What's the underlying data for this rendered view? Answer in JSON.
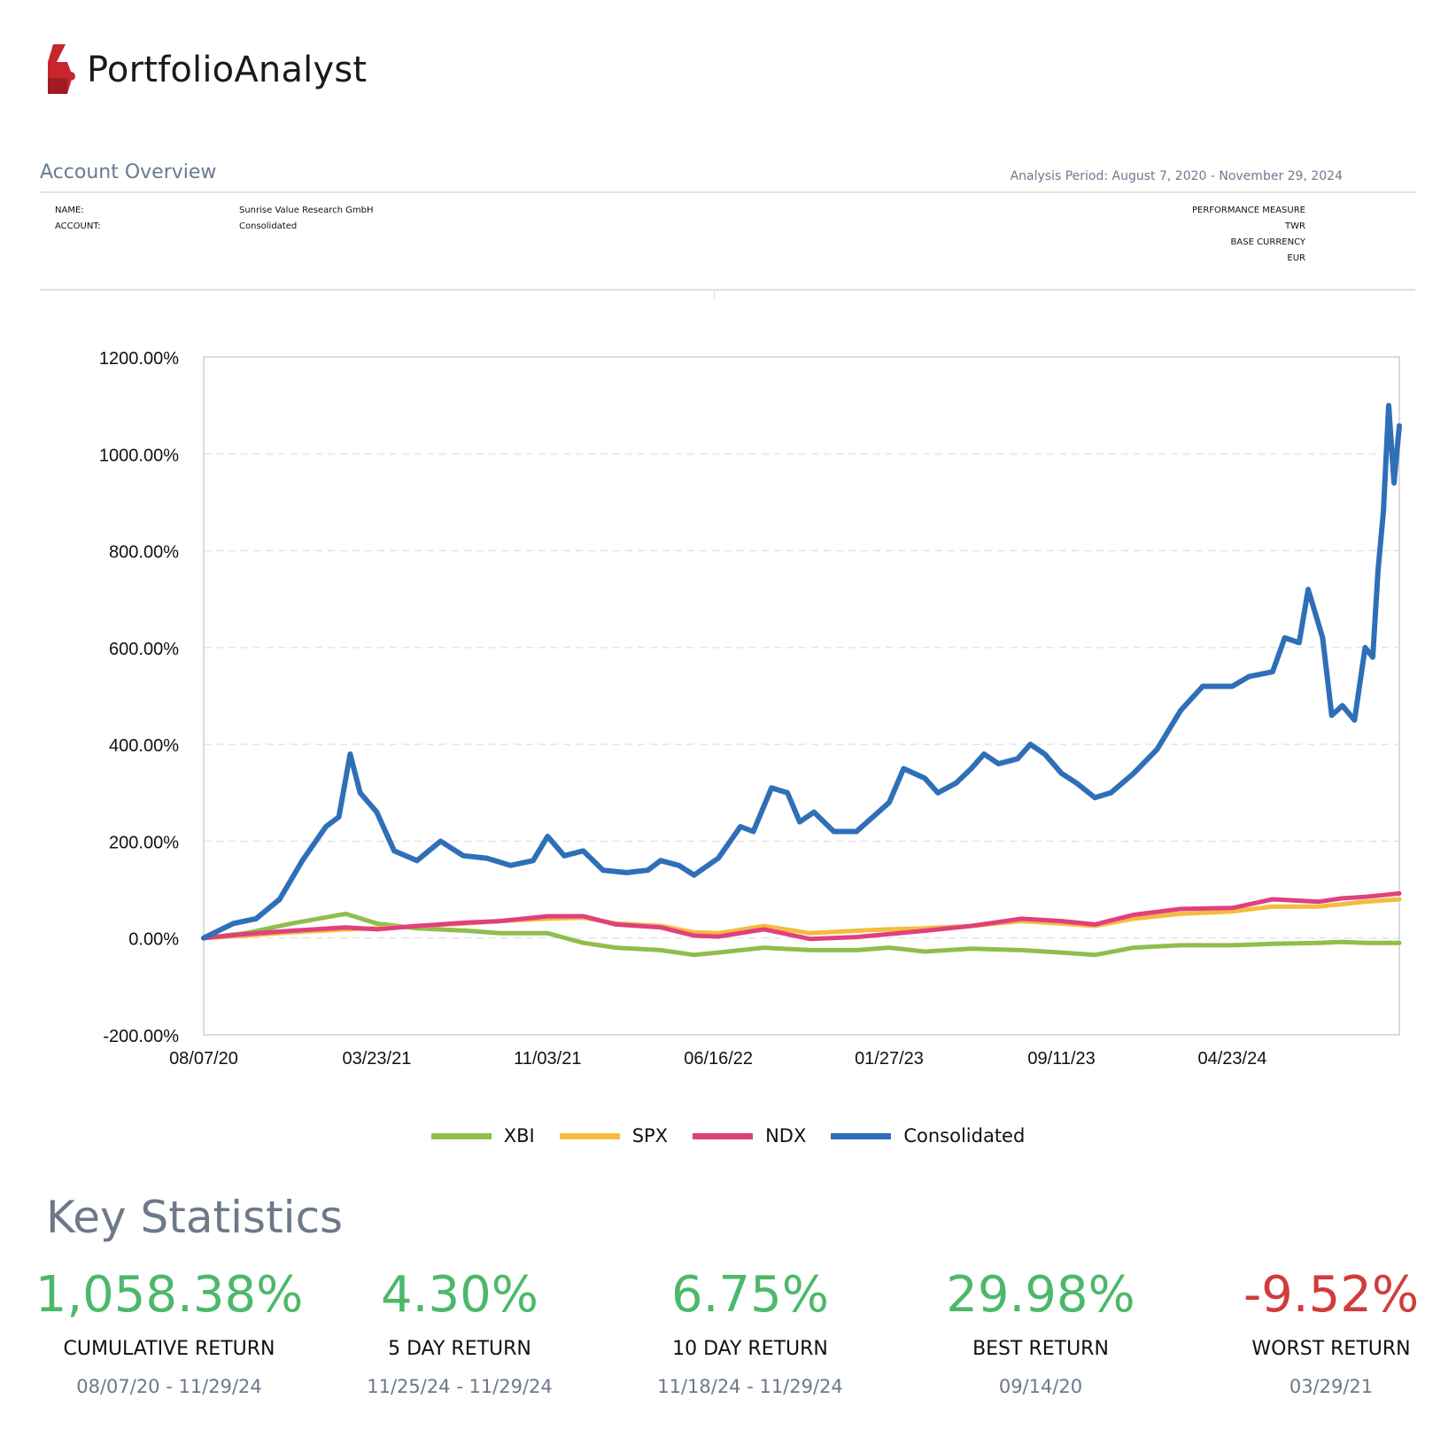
{
  "brand": {
    "name": "PortfolioAnalyst"
  },
  "overview": {
    "title": "Account Overview",
    "analysis_period": "Analysis Period: August 7, 2020 - November 29, 2024",
    "name_label": "NAME:",
    "name_value": "Sunrise Value Research GmbH",
    "account_label": "ACCOUNT:",
    "account_value": "Consolidated",
    "perf_label": "PERFORMANCE MEASURE",
    "perf_value": "TWR",
    "currency_label": "BASE CURRENCY",
    "currency_value": "EUR"
  },
  "colors": {
    "XBI": "#8fbe4a",
    "SPX": "#f5bb3c",
    "NDX": "#e0407f",
    "Consolidated": "#2f6fb8",
    "positive": "#4cb86a",
    "negative": "#d23b3b"
  },
  "chart_data": {
    "type": "line",
    "ylim": [
      -200,
      1200
    ],
    "yticks": [
      "1200.00%",
      "1000.00%",
      "800.00%",
      "600.00%",
      "400.00%",
      "200.00%",
      "0.00%",
      "-200.00%"
    ],
    "ytick_values": [
      1200,
      1000,
      800,
      600,
      400,
      200,
      0,
      -200
    ],
    "xticks": [
      "08/07/20",
      "03/23/21",
      "11/03/21",
      "06/16/22",
      "01/27/23",
      "09/11/23",
      "04/23/24"
    ],
    "grid": true,
    "legend_position": "bottom",
    "series": [
      {
        "name": "XBI",
        "values": [
          [
            "08/07/20",
            0
          ],
          [
            "10/01/20",
            10
          ],
          [
            "12/01/20",
            30
          ],
          [
            "02/10/21",
            50
          ],
          [
            "03/23/21",
            30
          ],
          [
            "05/15/21",
            20
          ],
          [
            "07/20/21",
            15
          ],
          [
            "09/01/21",
            10
          ],
          [
            "11/03/21",
            10
          ],
          [
            "12/20/21",
            -10
          ],
          [
            "02/01/22",
            -20
          ],
          [
            "04/01/22",
            -25
          ],
          [
            "05/15/22",
            -35
          ],
          [
            "06/16/22",
            -30
          ],
          [
            "08/15/22",
            -20
          ],
          [
            "10/15/22",
            -25
          ],
          [
            "12/15/22",
            -25
          ],
          [
            "01/27/23",
            -20
          ],
          [
            "03/15/23",
            -28
          ],
          [
            "05/15/23",
            -22
          ],
          [
            "07/20/23",
            -25
          ],
          [
            "09/11/23",
            -30
          ],
          [
            "10/25/23",
            -35
          ],
          [
            "12/15/23",
            -20
          ],
          [
            "02/15/24",
            -15
          ],
          [
            "04/23/24",
            -15
          ],
          [
            "06/15/24",
            -12
          ],
          [
            "08/15/24",
            -10
          ],
          [
            "09/15/24",
            -8
          ],
          [
            "10/15/24",
            -10
          ],
          [
            "11/29/24",
            -10
          ]
        ]
      },
      {
        "name": "SPX",
        "values": [
          [
            "08/07/20",
            0
          ],
          [
            "10/01/20",
            5
          ],
          [
            "12/01/20",
            12
          ],
          [
            "02/10/21",
            18
          ],
          [
            "03/23/21",
            20
          ],
          [
            "05/15/21",
            25
          ],
          [
            "07/20/21",
            30
          ],
          [
            "09/01/21",
            35
          ],
          [
            "11/03/21",
            40
          ],
          [
            "12/20/21",
            42
          ],
          [
            "02/01/22",
            30
          ],
          [
            "04/01/22",
            25
          ],
          [
            "05/15/22",
            12
          ],
          [
            "06/16/22",
            10
          ],
          [
            "08/15/22",
            25
          ],
          [
            "10/15/22",
            10
          ],
          [
            "12/15/22",
            15
          ],
          [
            "01/27/23",
            18
          ],
          [
            "03/15/23",
            20
          ],
          [
            "05/15/23",
            25
          ],
          [
            "07/20/23",
            35
          ],
          [
            "09/11/23",
            30
          ],
          [
            "10/25/23",
            25
          ],
          [
            "12/15/23",
            40
          ],
          [
            "02/15/24",
            50
          ],
          [
            "04/23/24",
            55
          ],
          [
            "06/15/24",
            65
          ],
          [
            "08/15/24",
            65
          ],
          [
            "09/15/24",
            70
          ],
          [
            "10/15/24",
            75
          ],
          [
            "11/29/24",
            80
          ]
        ]
      },
      {
        "name": "NDX",
        "values": [
          [
            "08/07/20",
            0
          ],
          [
            "10/01/20",
            8
          ],
          [
            "12/01/20",
            15
          ],
          [
            "02/10/21",
            22
          ],
          [
            "03/23/21",
            18
          ],
          [
            "05/15/21",
            25
          ],
          [
            "07/20/21",
            32
          ],
          [
            "09/01/21",
            35
          ],
          [
            "11/03/21",
            45
          ],
          [
            "12/20/21",
            45
          ],
          [
            "02/01/22",
            28
          ],
          [
            "04/01/22",
            22
          ],
          [
            "05/15/22",
            5
          ],
          [
            "06/16/22",
            3
          ],
          [
            "08/15/22",
            18
          ],
          [
            "10/15/22",
            -2
          ],
          [
            "12/15/22",
            2
          ],
          [
            "01/27/23",
            8
          ],
          [
            "03/15/23",
            15
          ],
          [
            "05/15/23",
            25
          ],
          [
            "07/20/23",
            40
          ],
          [
            "09/11/23",
            35
          ],
          [
            "10/25/23",
            28
          ],
          [
            "12/15/23",
            48
          ],
          [
            "02/15/24",
            60
          ],
          [
            "04/23/24",
            62
          ],
          [
            "06/15/24",
            80
          ],
          [
            "08/15/24",
            75
          ],
          [
            "09/15/24",
            82
          ],
          [
            "10/15/24",
            85
          ],
          [
            "11/29/24",
            92
          ]
        ]
      },
      {
        "name": "Consolidated",
        "values": [
          [
            "08/07/20",
            0
          ],
          [
            "09/15/20",
            30
          ],
          [
            "10/15/20",
            40
          ],
          [
            "11/15/20",
            80
          ],
          [
            "12/15/20",
            160
          ],
          [
            "01/15/21",
            230
          ],
          [
            "02/01/21",
            250
          ],
          [
            "02/16/21",
            380
          ],
          [
            "03/01/21",
            300
          ],
          [
            "03/23/21",
            260
          ],
          [
            "04/15/21",
            180
          ],
          [
            "05/15/21",
            160
          ],
          [
            "06/15/21",
            200
          ],
          [
            "07/15/21",
            170
          ],
          [
            "08/15/21",
            165
          ],
          [
            "09/15/21",
            150
          ],
          [
            "10/15/21",
            160
          ],
          [
            "11/03/21",
            210
          ],
          [
            "11/25/21",
            170
          ],
          [
            "12/20/21",
            180
          ],
          [
            "01/15/22",
            140
          ],
          [
            "02/15/22",
            135
          ],
          [
            "03/15/22",
            140
          ],
          [
            "04/01/22",
            160
          ],
          [
            "04/25/22",
            150
          ],
          [
            "05/15/22",
            130
          ],
          [
            "06/16/22",
            165
          ],
          [
            "07/15/22",
            230
          ],
          [
            "08/01/22",
            220
          ],
          [
            "08/25/22",
            310
          ],
          [
            "09/15/22",
            300
          ],
          [
            "10/01/22",
            240
          ],
          [
            "10/20/22",
            260
          ],
          [
            "11/15/22",
            220
          ],
          [
            "12/15/22",
            220
          ],
          [
            "01/27/23",
            280
          ],
          [
            "02/15/23",
            350
          ],
          [
            "03/15/23",
            330
          ],
          [
            "04/01/23",
            300
          ],
          [
            "04/25/23",
            320
          ],
          [
            "05/15/23",
            350
          ],
          [
            "06/01/23",
            380
          ],
          [
            "06/20/23",
            360
          ],
          [
            "07/15/23",
            370
          ],
          [
            "08/01/23",
            400
          ],
          [
            "08/20/23",
            380
          ],
          [
            "09/11/23",
            340
          ],
          [
            "10/01/23",
            320
          ],
          [
            "10/25/23",
            290
          ],
          [
            "11/15/23",
            300
          ],
          [
            "12/15/23",
            340
          ],
          [
            "01/15/24",
            390
          ],
          [
            "02/15/24",
            470
          ],
          [
            "03/15/24",
            520
          ],
          [
            "04/23/24",
            520
          ],
          [
            "05/15/24",
            540
          ],
          [
            "06/15/24",
            550
          ],
          [
            "07/01/24",
            620
          ],
          [
            "07/20/24",
            610
          ],
          [
            "08/01/24",
            720
          ],
          [
            "08/20/24",
            620
          ],
          [
            "09/01/24",
            460
          ],
          [
            "09/15/24",
            480
          ],
          [
            "10/01/24",
            450
          ],
          [
            "10/15/24",
            600
          ],
          [
            "10/25/24",
            580
          ],
          [
            "11/01/24",
            760
          ],
          [
            "11/08/24",
            880
          ],
          [
            "11/15/24",
            1100
          ],
          [
            "11/22/24",
            940
          ],
          [
            "11/29/24",
            1058
          ]
        ]
      }
    ]
  },
  "legend": [
    "XBI",
    "SPX",
    "NDX",
    "Consolidated"
  ],
  "stats": {
    "title": "Key Statistics",
    "items": [
      {
        "value": "1,058.38%",
        "label": "CUMULATIVE RETURN",
        "range": "08/07/20 - 11/29/24",
        "sign": "positive"
      },
      {
        "value": "4.30%",
        "label": "5 DAY RETURN",
        "range": "11/25/24 - 11/29/24",
        "sign": "positive"
      },
      {
        "value": "6.75%",
        "label": "10 DAY RETURN",
        "range": "11/18/24 - 11/29/24",
        "sign": "positive"
      },
      {
        "value": "29.98%",
        "label": "BEST RETURN",
        "range": "09/14/20",
        "sign": "positive"
      },
      {
        "value": "-9.52%",
        "label": "WORST RETURN",
        "range": "03/29/21",
        "sign": "negative"
      }
    ]
  }
}
